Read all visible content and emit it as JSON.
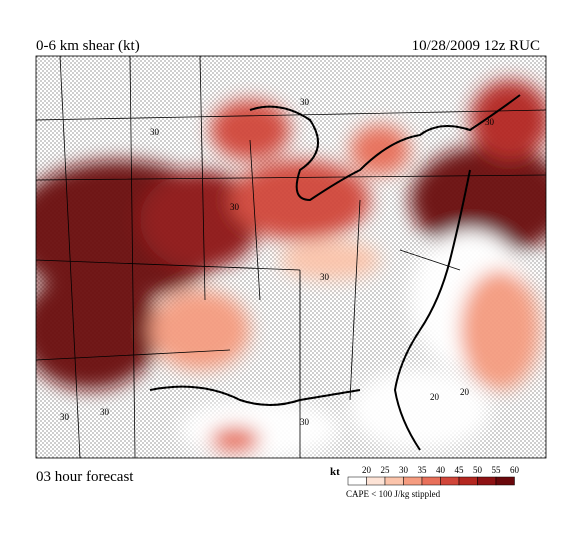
{
  "header": {
    "title": "0-6 km shear (kt)",
    "valid": "10/28/2009  12z  RUC"
  },
  "footer": {
    "forecast": "03 hour forecast",
    "stipple_note": "CAPE < 100 J/kg stippled"
  },
  "legend": {
    "unit": "kt",
    "levels": [
      "20",
      "25",
      "30",
      "35",
      "40",
      "45",
      "50",
      "55",
      "60"
    ],
    "colors": [
      "#ffffff",
      "#fde3d6",
      "#fbc4ab",
      "#f59c80",
      "#e8705a",
      "#d1463a",
      "#b42720",
      "#8e1214",
      "#6a080c"
    ]
  },
  "map_labels": [
    "30",
    "30",
    "30",
    "30",
    "30",
    "30",
    "20",
    "20",
    "30",
    "30"
  ]
}
